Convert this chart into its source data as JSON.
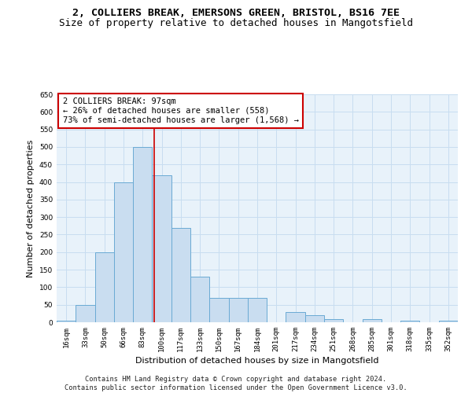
{
  "title_line1": "2, COLLIERS BREAK, EMERSONS GREEN, BRISTOL, BS16 7EE",
  "title_line2": "Size of property relative to detached houses in Mangotsfield",
  "xlabel": "Distribution of detached houses by size in Mangotsfield",
  "ylabel": "Number of detached properties",
  "categories": [
    "16sqm",
    "33sqm",
    "50sqm",
    "66sqm",
    "83sqm",
    "100sqm",
    "117sqm",
    "133sqm",
    "150sqm",
    "167sqm",
    "184sqm",
    "201sqm",
    "217sqm",
    "234sqm",
    "251sqm",
    "268sqm",
    "285sqm",
    "301sqm",
    "318sqm",
    "335sqm",
    "352sqm"
  ],
  "values": [
    5,
    50,
    200,
    400,
    500,
    420,
    270,
    130,
    70,
    70,
    70,
    0,
    30,
    20,
    10,
    0,
    10,
    0,
    5,
    0,
    5
  ],
  "bar_color": "#c9ddf0",
  "bar_edge_color": "#6aaad4",
  "grid_color": "#c8ddf0",
  "bg_color": "#e8f2fa",
  "vline_color": "#cc0000",
  "vline_x_index": 4.62,
  "annotation_text": "2 COLLIERS BREAK: 97sqm\n← 26% of detached houses are smaller (558)\n73% of semi-detached houses are larger (1,568) →",
  "annotation_box_color": "white",
  "annotation_box_edge": "#cc0000",
  "ylim": [
    0,
    650
  ],
  "yticks": [
    0,
    50,
    100,
    150,
    200,
    250,
    300,
    350,
    400,
    450,
    500,
    550,
    600,
    650
  ],
  "footer_line1": "Contains HM Land Registry data © Crown copyright and database right 2024.",
  "footer_line2": "Contains public sector information licensed under the Open Government Licence v3.0.",
  "title_fontsize": 9.5,
  "subtitle_fontsize": 9,
  "axis_label_fontsize": 8,
  "tick_fontsize": 6.5,
  "annotation_fontsize": 7.5,
  "footer_fontsize": 6.2
}
